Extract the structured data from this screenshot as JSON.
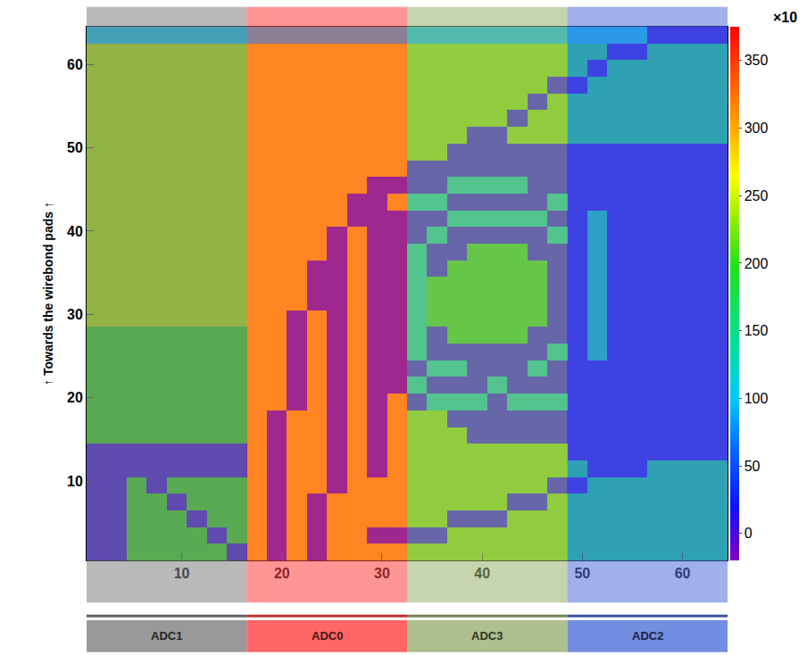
{
  "chart_data": {
    "type": "heatmap",
    "y_label": "↑ Towards the wirebond pads ↑",
    "x": [
      1.5,
      3.5,
      5.5,
      7.5,
      9.5,
      11.5,
      13.5,
      15.5,
      17.5,
      19.5,
      21.5,
      23.5,
      25.5,
      27.5,
      29.5,
      31.5,
      33.5,
      35.5,
      37.5,
      39.5,
      41.5,
      43.5,
      45.5,
      47.5,
      49.5,
      51.5,
      53.5,
      55.5,
      57.5,
      59.5,
      61.5,
      63.5
    ],
    "y": [
      1.5,
      3.5,
      5.5,
      7.5,
      9.5,
      11.5,
      13.5,
      15.5,
      17.5,
      19.5,
      21.5,
      23.5,
      25.5,
      27.5,
      29.5,
      31.5,
      33.5,
      35.5,
      37.5,
      39.5,
      41.5,
      43.5,
      45.5,
      47.5,
      49.5,
      51.5,
      53.5,
      55.5,
      57.5,
      59.5,
      61.5,
      63.5
    ],
    "z": [
      [
        5,
        5,
        200,
        200,
        200,
        200,
        200,
        5,
        280,
        10,
        280,
        10,
        280,
        280,
        280,
        280,
        230,
        230,
        230,
        230,
        230,
        230,
        230,
        230,
        150,
        150,
        150,
        150,
        150,
        150,
        150,
        150
      ],
      [
        5,
        5,
        200,
        200,
        200,
        200,
        5,
        200,
        280,
        10,
        280,
        10,
        280,
        280,
        10,
        10,
        10,
        10,
        230,
        230,
        230,
        230,
        230,
        230,
        150,
        150,
        150,
        150,
        150,
        150,
        150,
        150
      ],
      [
        5,
        5,
        200,
        200,
        200,
        5,
        200,
        200,
        280,
        10,
        280,
        10,
        280,
        280,
        280,
        280,
        230,
        230,
        10,
        10,
        10,
        230,
        230,
        230,
        150,
        150,
        150,
        150,
        150,
        150,
        150,
        150
      ],
      [
        5,
        5,
        200,
        200,
        5,
        200,
        200,
        200,
        280,
        10,
        280,
        10,
        280,
        280,
        280,
        280,
        230,
        230,
        230,
        230,
        230,
        10,
        10,
        230,
        150,
        150,
        150,
        150,
        150,
        150,
        150,
        150
      ],
      [
        5,
        5,
        200,
        5,
        200,
        200,
        200,
        200,
        280,
        10,
        280,
        280,
        10,
        280,
        280,
        280,
        230,
        230,
        230,
        230,
        230,
        230,
        230,
        10,
        10,
        150,
        150,
        150,
        150,
        150,
        150,
        150
      ],
      [
        5,
        5,
        5,
        5,
        5,
        5,
        5,
        5,
        280,
        10,
        280,
        280,
        10,
        280,
        10,
        280,
        230,
        230,
        230,
        230,
        230,
        230,
        230,
        230,
        150,
        10,
        10,
        10,
        150,
        150,
        150,
        150
      ],
      [
        5,
        5,
        5,
        5,
        5,
        5,
        5,
        5,
        280,
        10,
        280,
        280,
        10,
        280,
        10,
        280,
        230,
        230,
        230,
        230,
        230,
        230,
        230,
        230,
        10,
        10,
        10,
        10,
        10,
        10,
        10,
        10
      ],
      [
        200,
        200,
        200,
        200,
        200,
        200,
        200,
        200,
        280,
        10,
        280,
        280,
        10,
        280,
        10,
        280,
        230,
        230,
        230,
        10,
        10,
        10,
        10,
        10,
        10,
        10,
        10,
        10,
        10,
        10,
        10,
        10
      ],
      [
        200,
        200,
        200,
        200,
        200,
        200,
        200,
        200,
        280,
        10,
        280,
        280,
        10,
        280,
        10,
        280,
        230,
        230,
        10,
        10,
        10,
        10,
        10,
        10,
        10,
        10,
        10,
        10,
        10,
        10,
        10,
        10
      ],
      [
        200,
        200,
        200,
        200,
        200,
        200,
        200,
        200,
        280,
        280,
        10,
        280,
        10,
        280,
        10,
        280,
        10,
        130,
        130,
        130,
        10,
        130,
        130,
        130,
        10,
        10,
        10,
        10,
        10,
        10,
        10,
        10
      ],
      [
        200,
        200,
        200,
        200,
        200,
        200,
        200,
        200,
        280,
        280,
        10,
        280,
        10,
        280,
        10,
        10,
        130,
        10,
        10,
        10,
        130,
        10,
        10,
        10,
        10,
        10,
        10,
        10,
        10,
        10,
        10,
        10
      ],
      [
        200,
        200,
        200,
        200,
        200,
        200,
        200,
        200,
        280,
        280,
        10,
        280,
        10,
        280,
        10,
        10,
        10,
        130,
        130,
        10,
        10,
        10,
        130,
        10,
        10,
        10,
        10,
        10,
        10,
        10,
        10,
        10
      ],
      [
        200,
        200,
        200,
        200,
        200,
        200,
        200,
        200,
        280,
        280,
        10,
        280,
        10,
        280,
        10,
        10,
        130,
        10,
        10,
        10,
        10,
        10,
        10,
        130,
        10,
        130,
        10,
        10,
        10,
        10,
        10,
        10
      ],
      [
        200,
        200,
        200,
        200,
        200,
        200,
        200,
        200,
        280,
        280,
        10,
        280,
        10,
        280,
        10,
        10,
        130,
        10,
        200,
        200,
        200,
        200,
        10,
        10,
        10,
        130,
        10,
        10,
        10,
        10,
        10,
        10
      ],
      [
        240,
        240,
        240,
        240,
        240,
        240,
        240,
        240,
        280,
        280,
        10,
        280,
        10,
        280,
        10,
        10,
        130,
        200,
        200,
        200,
        200,
        200,
        200,
        10,
        10,
        130,
        10,
        10,
        10,
        10,
        10,
        10
      ],
      [
        240,
        240,
        240,
        240,
        240,
        240,
        240,
        240,
        280,
        280,
        280,
        10,
        10,
        280,
        10,
        10,
        130,
        200,
        200,
        200,
        200,
        200,
        200,
        10,
        10,
        130,
        10,
        10,
        10,
        10,
        10,
        10
      ],
      [
        240,
        240,
        240,
        240,
        240,
        240,
        240,
        240,
        280,
        280,
        280,
        10,
        10,
        280,
        10,
        10,
        130,
        200,
        200,
        200,
        200,
        200,
        200,
        10,
        10,
        130,
        10,
        10,
        10,
        10,
        10,
        10
      ],
      [
        240,
        240,
        240,
        240,
        240,
        240,
        240,
        240,
        280,
        280,
        280,
        10,
        10,
        280,
        10,
        10,
        130,
        10,
        200,
        200,
        200,
        200,
        200,
        10,
        10,
        130,
        10,
        10,
        10,
        10,
        10,
        10
      ],
      [
        240,
        240,
        240,
        240,
        240,
        240,
        240,
        240,
        280,
        280,
        280,
        280,
        10,
        280,
        10,
        10,
        130,
        10,
        10,
        200,
        200,
        200,
        10,
        10,
        10,
        130,
        10,
        10,
        10,
        10,
        10,
        10
      ],
      [
        240,
        240,
        240,
        240,
        240,
        240,
        240,
        240,
        280,
        280,
        280,
        280,
        10,
        280,
        10,
        10,
        10,
        130,
        10,
        10,
        10,
        10,
        10,
        130,
        10,
        130,
        10,
        10,
        10,
        10,
        10,
        10
      ],
      [
        240,
        240,
        240,
        240,
        240,
        240,
        240,
        240,
        280,
        280,
        280,
        280,
        280,
        10,
        10,
        10,
        10,
        10,
        130,
        130,
        130,
        130,
        130,
        10,
        10,
        130,
        10,
        10,
        10,
        10,
        10,
        10
      ],
      [
        240,
        240,
        240,
        240,
        240,
        240,
        240,
        240,
        280,
        280,
        280,
        280,
        280,
        10,
        10,
        280,
        130,
        130,
        10,
        10,
        10,
        10,
        10,
        130,
        10,
        10,
        10,
        10,
        10,
        10,
        10,
        10
      ],
      [
        240,
        240,
        240,
        240,
        240,
        240,
        240,
        240,
        280,
        280,
        280,
        280,
        280,
        280,
        10,
        10,
        10,
        10,
        130,
        130,
        130,
        130,
        10,
        10,
        10,
        10,
        10,
        10,
        10,
        10,
        10,
        10
      ],
      [
        240,
        240,
        240,
        240,
        240,
        240,
        240,
        240,
        280,
        280,
        280,
        280,
        280,
        280,
        280,
        280,
        10,
        10,
        10,
        10,
        10,
        10,
        10,
        10,
        10,
        10,
        10,
        10,
        10,
        10,
        10,
        10
      ],
      [
        240,
        240,
        240,
        240,
        240,
        240,
        240,
        240,
        280,
        280,
        280,
        280,
        280,
        280,
        280,
        280,
        230,
        230,
        10,
        10,
        10,
        10,
        10,
        10,
        10,
        10,
        10,
        10,
        10,
        10,
        10,
        10
      ],
      [
        240,
        240,
        240,
        240,
        240,
        240,
        240,
        240,
        280,
        280,
        280,
        280,
        280,
        280,
        280,
        280,
        230,
        230,
        230,
        10,
        10,
        230,
        230,
        230,
        150,
        150,
        150,
        150,
        150,
        150,
        150,
        150
      ],
      [
        240,
        240,
        240,
        240,
        240,
        240,
        240,
        240,
        280,
        280,
        280,
        280,
        280,
        280,
        280,
        280,
        230,
        230,
        230,
        230,
        230,
        10,
        230,
        230,
        150,
        150,
        150,
        150,
        150,
        150,
        150,
        150
      ],
      [
        240,
        240,
        240,
        240,
        240,
        240,
        240,
        240,
        280,
        280,
        280,
        280,
        280,
        280,
        280,
        280,
        230,
        230,
        230,
        230,
        230,
        230,
        10,
        230,
        150,
        150,
        150,
        150,
        150,
        150,
        150,
        150
      ],
      [
        240,
        240,
        240,
        240,
        240,
        240,
        240,
        240,
        280,
        280,
        280,
        280,
        280,
        280,
        280,
        280,
        230,
        230,
        230,
        230,
        230,
        230,
        230,
        10,
        10,
        150,
        150,
        150,
        150,
        150,
        150,
        150
      ],
      [
        240,
        240,
        240,
        240,
        240,
        240,
        240,
        240,
        280,
        280,
        280,
        280,
        280,
        280,
        280,
        280,
        230,
        230,
        230,
        230,
        230,
        230,
        230,
        230,
        150,
        10,
        150,
        150,
        150,
        150,
        150,
        150
      ],
      [
        240,
        240,
        240,
        240,
        240,
        240,
        240,
        240,
        280,
        280,
        280,
        280,
        280,
        280,
        280,
        280,
        230,
        230,
        230,
        230,
        230,
        230,
        230,
        230,
        150,
        150,
        10,
        10,
        150,
        150,
        150,
        150
      ],
      [
        100,
        100,
        100,
        100,
        100,
        100,
        100,
        100,
        100,
        100,
        100,
        100,
        100,
        100,
        100,
        100,
        100,
        100,
        100,
        100,
        100,
        100,
        100,
        100,
        100,
        100,
        100,
        100,
        10,
        10,
        10,
        10
      ]
    ],
    "xlim": [
      0.5,
      64.5
    ],
    "ylim": [
      0.5,
      64.5
    ],
    "xticks": [
      10,
      20,
      30,
      40,
      50,
      60
    ],
    "yticks": [
      10,
      20,
      30,
      40,
      50,
      60
    ],
    "zlim": [
      -20,
      375
    ],
    "zticks": [
      0,
      50,
      100,
      150,
      200,
      250,
      300,
      350
    ],
    "z_exponent_label": "×10",
    "grid": false,
    "regions": [
      {
        "label": "ADC1",
        "x": [
          0.5,
          16.5
        ],
        "color": "#808080"
      },
      {
        "label": "ADC0",
        "x": [
          16.5,
          32.5
        ],
        "color": "#ff4040"
      },
      {
        "label": "ADC3",
        "x": [
          32.5,
          48.5
        ],
        "color": "#98b070"
      },
      {
        "label": "ADC2",
        "x": [
          48.5,
          64.5
        ],
        "color": "#5070d8"
      }
    ]
  }
}
